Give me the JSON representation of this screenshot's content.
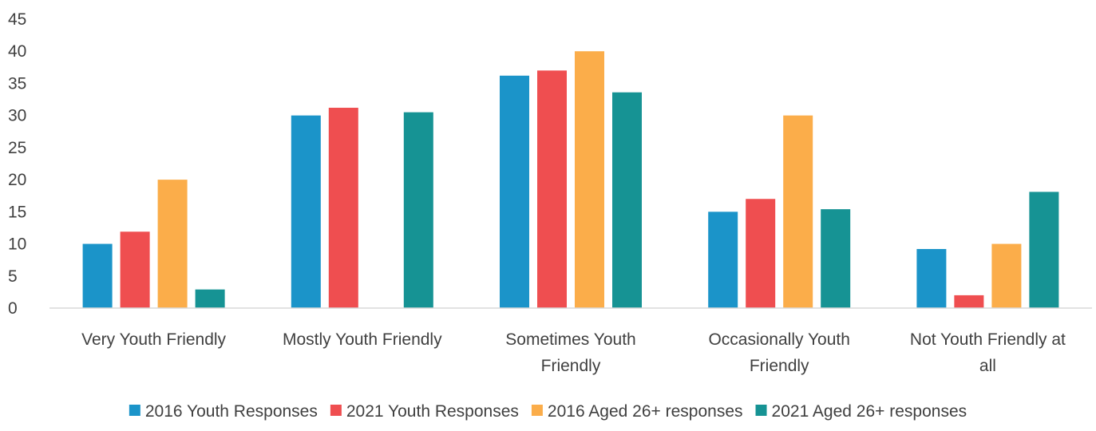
{
  "chart_data": {
    "type": "bar",
    "title": "",
    "xlabel": "",
    "ylabel": "",
    "ylim": [
      0,
      45
    ],
    "yticks": [
      0,
      5,
      10,
      15,
      20,
      25,
      30,
      35,
      40,
      45
    ],
    "grid": false,
    "legend_position": "bottom",
    "categories": [
      [
        "Very Youth Friendly"
      ],
      [
        "Mostly Youth Friendly"
      ],
      [
        "Sometimes Youth",
        "Friendly"
      ],
      [
        "Occasionally Youth",
        "Friendly"
      ],
      [
        "Not Youth Friendly at",
        "all"
      ]
    ],
    "series": [
      {
        "name": "2016 Youth Responses",
        "color": "#1B94C9",
        "values": [
          10,
          30,
          36.2,
          15,
          9.2
        ]
      },
      {
        "name": "2021 Youth Responses",
        "color": "#EF4E50",
        "values": [
          11.9,
          31.2,
          37,
          17,
          2
        ]
      },
      {
        "name": "2016 Aged 26+ responses",
        "color": "#FBAD4A",
        "values": [
          20,
          0,
          40,
          30,
          10
        ]
      },
      {
        "name": "2021 Aged 26+ responses",
        "color": "#169394",
        "values": [
          2.9,
          30.5,
          33.6,
          15.4,
          18.1
        ]
      }
    ]
  }
}
